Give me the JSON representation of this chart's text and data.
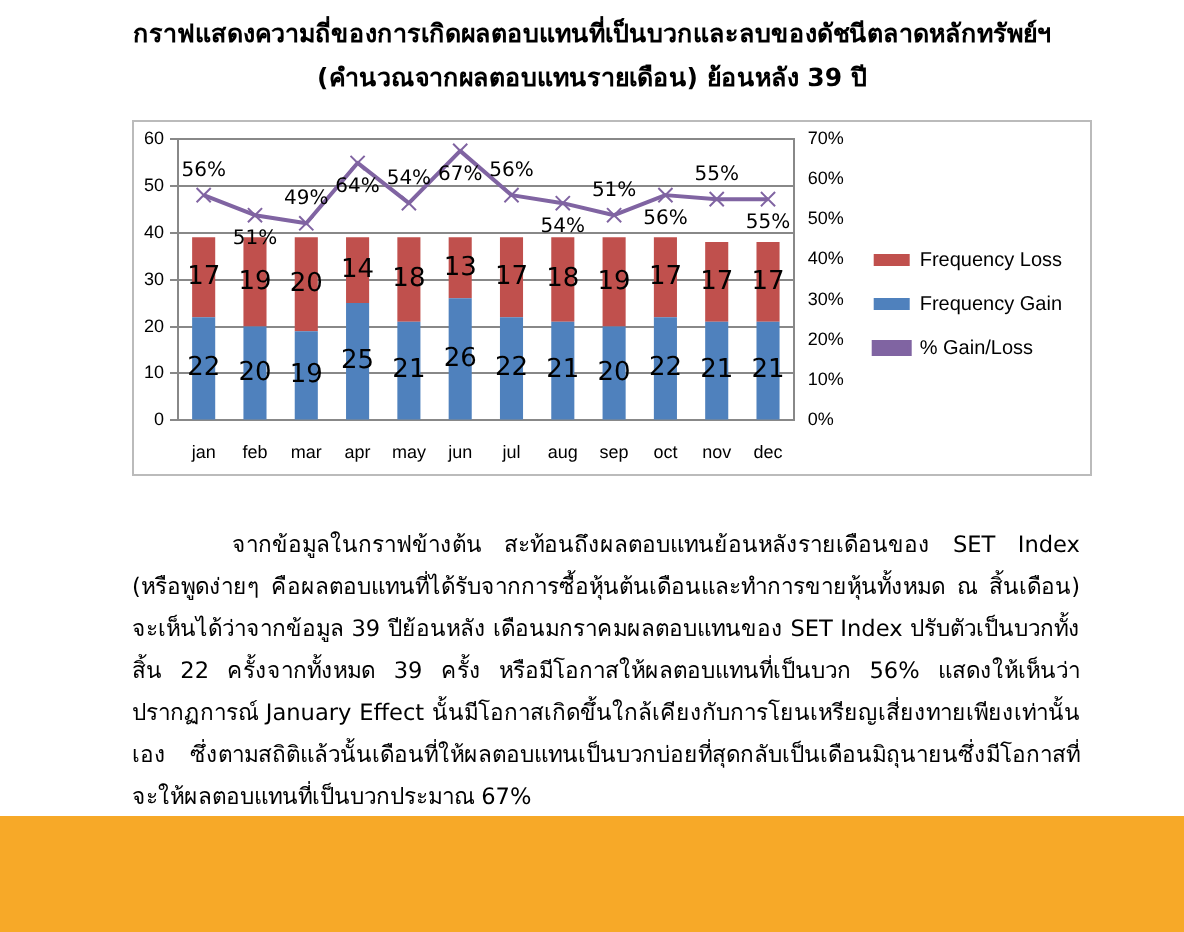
{
  "chart_data": {
    "type": "bar",
    "stacked": true,
    "title": "กราฟแสดงความถี่ของการเกิดผลตอบแทนที่เป็นบวกและลบของดัชนีตลาดหลักทรัพย์ฯ",
    "subtitle": "(คำนวณจากผลตอบแทนรายเดือน) ย้อนหลัง 39 ปี",
    "categories": [
      "jan",
      "feb",
      "mar",
      "apr",
      "may",
      "jun",
      "jul",
      "aug",
      "sep",
      "oct",
      "nov",
      "dec"
    ],
    "series": [
      {
        "name": "Frequency Gain",
        "color": "#4f81bd",
        "values": [
          22,
          20,
          19,
          25,
          21,
          26,
          22,
          21,
          20,
          22,
          21,
          21
        ]
      },
      {
        "name": "Frequency Loss",
        "color": "#c0504d",
        "values": [
          17,
          19,
          20,
          14,
          18,
          13,
          17,
          18,
          19,
          17,
          17,
          17
        ]
      },
      {
        "name": "% Gain/Loss",
        "type": "line",
        "axis": "y2",
        "color": "#8064a2",
        "values": [
          56,
          51,
          49,
          64,
          54,
          67,
          56,
          54,
          51,
          56,
          55,
          55
        ],
        "value_labels": [
          "56%",
          "51%",
          "49%",
          "64%",
          "54%",
          "67%",
          "56%",
          "54%",
          "51%",
          "56%",
          "55%",
          "55%"
        ]
      }
    ],
    "ylim": [
      0,
      60
    ],
    "yticks": [
      0,
      10,
      20,
      30,
      40,
      50,
      60
    ],
    "y2lim": [
      0,
      70
    ],
    "y2ticks": [
      {
        "value": 0,
        "label": "0%"
      },
      {
        "value": 10,
        "label": "10%"
      },
      {
        "value": 20,
        "label": "20%"
      },
      {
        "value": 30,
        "label": "30%"
      },
      {
        "value": 40,
        "label": "40%"
      },
      {
        "value": 50,
        "label": "50%"
      },
      {
        "value": 60,
        "label": "60%"
      },
      {
        "value": 70,
        "label": "70%"
      }
    ],
    "grid": "y",
    "legend": "right",
    "marker": "cross",
    "line_style": "solid",
    "data_labels": true,
    "annotations": [
      "จากข้อมูลในกราฟข้างต้น สะท้อนถึงผลตอบแทนย้อนหลังรายเดือนของ SET Index (หรือพูดง่ายๆ คือผลตอบแทนที่ได้รับจากการซื้อหุ้นต้นเดือนและทำการขายหุ้นทั้งหมด ณ สิ้นเดือน) จะเห็นได้ว่าจากข้อมูล 39 ปีย้อนหลัง เดือนมกราคมผลตอบแทนของ SET Index ปรับตัวเป็นบวกทั้งสิ้น 22 ครั้งจากทั้งหมด 39 ครั้ง หรือมีโอกาสให้ผลตอบแทนที่เป็นบวก 56% แสดงให้เห็นว่าปรากฏการณ์ January Effect นั้นมีโอกาสเกิดขึ้นใกล้เคียงกับการโยนเหรียญเสี่ยงทายเพียงเท่านั้นเอง ซึ่งตามสถิติแล้วนั้นเดือนที่ให้ผลตอบแทนเป็นบวกบ่อยที่สุดกลับเป็นเดือนมิถุนายนซึ่งมีโอกาสที่จะให้ผลตอบแทนที่เป็นบวกประมาณ 67%"
    ]
  }
}
